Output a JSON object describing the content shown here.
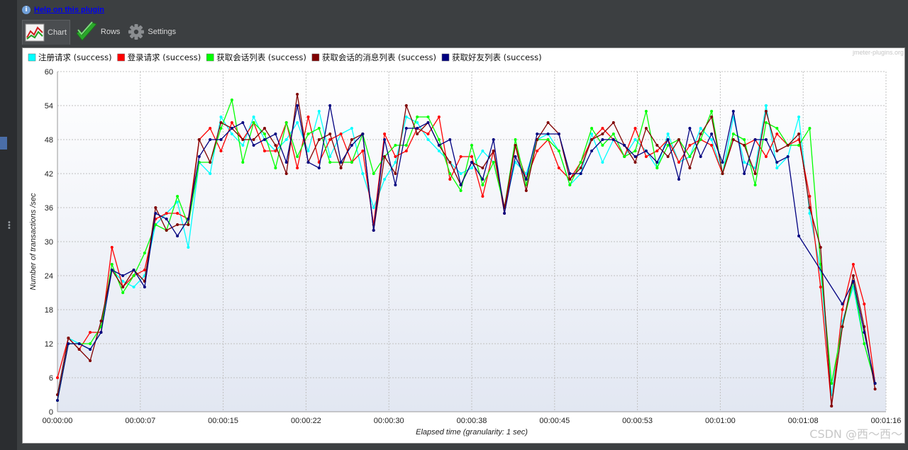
{
  "help": {
    "icon": "info-icon",
    "label": "Help on this plugin"
  },
  "tabs": [
    {
      "label": "Chart",
      "icon": "chart-icon",
      "active": true
    },
    {
      "label": "Rows",
      "icon": "checkmark-icon",
      "active": false
    },
    {
      "label": "Settings",
      "icon": "gear-icon",
      "active": false
    }
  ],
  "watermark": "jmeter-plugins.org",
  "csdn_watermark": "CSDN @西～西～",
  "chart_data": {
    "type": "line",
    "title": "",
    "xlabel": "Elapsed time (granularity: 1 sec)",
    "ylabel": "Number of transactions /sec",
    "ylim": [
      0,
      60
    ],
    "yticks": [
      "0",
      "6",
      "12",
      "18",
      "24",
      "30",
      "36",
      "42",
      "48",
      "54",
      "60"
    ],
    "xlim": [
      0,
      76
    ],
    "xticks": [
      {
        "v": 0,
        "label": "00:00:00"
      },
      {
        "v": 7.6,
        "label": "00:00:07"
      },
      {
        "v": 15.2,
        "label": "00:00:15"
      },
      {
        "v": 22.8,
        "label": "00:00:22"
      },
      {
        "v": 30.4,
        "label": "00:00:30"
      },
      {
        "v": 38,
        "label": "00:00:38"
      },
      {
        "v": 45.6,
        "label": "00:00:45"
      },
      {
        "v": 53.2,
        "label": "00:00:53"
      },
      {
        "v": 60.8,
        "label": "00:01:00"
      },
      {
        "v": 68.4,
        "label": "00:01:08"
      },
      {
        "v": 76,
        "label": "00:01:16"
      }
    ],
    "grid": true,
    "legend_position": "top",
    "series": [
      {
        "name": "注册请求 (success)",
        "color": "#00ffff",
        "x": [
          0,
          1,
          2,
          3,
          4,
          5,
          6,
          7,
          8,
          9,
          10,
          11,
          12,
          13,
          14,
          15,
          16,
          17,
          18,
          19,
          20,
          21,
          22,
          23,
          24,
          25,
          26,
          27,
          28,
          29,
          30,
          31,
          32,
          33,
          34,
          35,
          36,
          37,
          38,
          39,
          40,
          41,
          42,
          43,
          44,
          45,
          46,
          47,
          48,
          49,
          50,
          51,
          52,
          53,
          54,
          55,
          56,
          57,
          58,
          59,
          60,
          61,
          62,
          63,
          64,
          65,
          66,
          67,
          68,
          69,
          70,
          71,
          72,
          73,
          74,
          75,
          76
        ],
        "values": [
          3,
          13,
          12,
          11,
          14,
          25,
          23,
          22,
          24,
          33,
          35,
          37,
          29,
          44,
          42,
          52,
          49,
          47,
          52,
          48,
          46,
          48,
          51,
          46,
          53,
          45,
          49,
          50,
          42,
          36,
          41,
          44,
          52,
          51,
          48,
          46,
          44,
          42,
          43,
          46,
          44,
          36,
          44,
          42,
          48,
          49,
          46,
          40,
          42,
          49,
          44,
          48,
          45,
          48,
          46,
          43,
          49,
          44,
          45,
          50,
          48,
          42,
          52,
          44,
          43,
          54,
          43,
          45,
          52,
          35,
          25,
          3,
          16,
          22,
          12,
          5,
          null
        ]
      },
      {
        "name": "登录请求 (success)",
        "color": "#ff0000",
        "x": [
          0,
          1,
          2,
          3,
          4,
          5,
          6,
          7,
          8,
          9,
          10,
          11,
          12,
          13,
          14,
          15,
          16,
          17,
          18,
          19,
          20,
          21,
          22,
          23,
          24,
          25,
          26,
          27,
          28,
          29,
          30,
          31,
          32,
          33,
          34,
          35,
          36,
          37,
          38,
          39,
          40,
          41,
          42,
          43,
          44,
          45,
          46,
          47,
          48,
          49,
          50,
          51,
          52,
          53,
          54,
          55,
          56,
          57,
          58,
          59,
          60,
          61,
          62,
          63,
          64,
          65,
          66,
          67,
          68,
          69,
          70,
          71,
          72,
          73,
          74,
          75,
          76
        ],
        "values": [
          6,
          13,
          11,
          14,
          14,
          29,
          22,
          24,
          25,
          34,
          35,
          35,
          34,
          48,
          50,
          46,
          51,
          48,
          51,
          46,
          46,
          51,
          43,
          52,
          44,
          48,
          49,
          44,
          46,
          33,
          49,
          45,
          46,
          50,
          49,
          52,
          41,
          45,
          45,
          38,
          46,
          35,
          47,
          41,
          46,
          48,
          43,
          41,
          44,
          48,
          50,
          48,
          45,
          50,
          45,
          46,
          48,
          44,
          47,
          48,
          47,
          42,
          48,
          47,
          48,
          45,
          49,
          47,
          48,
          38,
          22,
          1,
          18,
          26,
          19,
          5,
          null
        ]
      },
      {
        "name": "获取会话列表 (success)",
        "color": "#00ff00",
        "x": [
          0,
          1,
          2,
          3,
          4,
          5,
          6,
          7,
          8,
          9,
          10,
          11,
          12,
          13,
          14,
          15,
          16,
          17,
          18,
          19,
          20,
          21,
          22,
          23,
          24,
          25,
          26,
          27,
          28,
          29,
          30,
          31,
          32,
          33,
          34,
          35,
          36,
          37,
          38,
          39,
          40,
          41,
          42,
          43,
          44,
          45,
          46,
          47,
          48,
          49,
          50,
          51,
          52,
          53,
          54,
          55,
          56,
          57,
          58,
          59,
          60,
          61,
          62,
          63,
          64,
          65,
          66,
          67,
          68,
          69,
          70,
          71,
          72,
          73,
          74,
          75,
          76
        ],
        "values": [
          2,
          12,
          12,
          12,
          15,
          26,
          21,
          24,
          28,
          33,
          32,
          38,
          33,
          44,
          44,
          50,
          55,
          44,
          51,
          49,
          43,
          51,
          45,
          49,
          50,
          44,
          44,
          44,
          49,
          42,
          45,
          47,
          47,
          52,
          52,
          48,
          42,
          39,
          47,
          40,
          44,
          36,
          48,
          40,
          48,
          48,
          46,
          40,
          44,
          50,
          47,
          49,
          45,
          46,
          53,
          43,
          47,
          48,
          45,
          48,
          53,
          42,
          49,
          48,
          40,
          51,
          50,
          47,
          47,
          50,
          26,
          5,
          15,
          23,
          12,
          5,
          null
        ]
      },
      {
        "name": "获取会话的消息列表 (success)",
        "color": "#800000",
        "x": [
          0,
          1,
          2,
          3,
          4,
          5,
          6,
          7,
          8,
          9,
          10,
          11,
          12,
          13,
          14,
          15,
          16,
          17,
          18,
          19,
          20,
          21,
          22,
          23,
          24,
          25,
          26,
          27,
          28,
          29,
          30,
          31,
          32,
          33,
          34,
          35,
          36,
          37,
          38,
          39,
          40,
          41,
          42,
          43,
          44,
          45,
          46,
          47,
          48,
          49,
          50,
          51,
          52,
          53,
          54,
          55,
          56,
          57,
          58,
          59,
          60,
          61,
          62,
          63,
          64,
          65,
          66,
          67,
          68,
          69,
          70,
          71,
          72,
          73,
          74,
          75,
          76
        ],
        "values": [
          3,
          13,
          11,
          9,
          16,
          25,
          22,
          25,
          23,
          36,
          32,
          33,
          33,
          48,
          44,
          51,
          50,
          48,
          48,
          50,
          47,
          42,
          56,
          44,
          48,
          49,
          43,
          48,
          49,
          32,
          45,
          42,
          54,
          49,
          51,
          47,
          44,
          40,
          44,
          43,
          46,
          36,
          47,
          39,
          48,
          51,
          49,
          41,
          43,
          48,
          49,
          51,
          47,
          44,
          50,
          47,
          45,
          48,
          43,
          49,
          52,
          42,
          48,
          47,
          42,
          53,
          46,
          47,
          49,
          36,
          29,
          1,
          15,
          24,
          15,
          4,
          null
        ]
      },
      {
        "name": "获取好友列表 (success)",
        "color": "#000080",
        "x": [
          0,
          1,
          2,
          3,
          4,
          5,
          6,
          7,
          8,
          9,
          10,
          11,
          12,
          13,
          14,
          15,
          16,
          17,
          18,
          19,
          20,
          21,
          22,
          23,
          24,
          25,
          26,
          27,
          28,
          29,
          30,
          31,
          32,
          33,
          34,
          35,
          36,
          37,
          38,
          39,
          40,
          41,
          42,
          43,
          44,
          45,
          46,
          47,
          48,
          49,
          50,
          51,
          52,
          53,
          54,
          55,
          56,
          57,
          58,
          59,
          60,
          61,
          62,
          63,
          64,
          65,
          66,
          67,
          68,
          69,
          70,
          71,
          72,
          73,
          74,
          75
        ],
        "values": [
          2,
          12,
          12,
          11,
          14,
          25,
          24,
          25,
          22,
          35,
          34,
          31,
          34,
          45,
          48,
          48,
          50,
          51,
          47,
          48,
          49,
          44,
          54,
          44,
          43,
          54,
          44,
          47,
          49,
          32,
          48,
          40,
          50,
          50,
          51,
          47,
          48,
          40,
          44,
          41,
          48,
          35,
          45,
          41,
          49,
          49,
          49,
          42,
          42,
          46,
          48,
          48,
          47,
          45,
          46,
          44,
          48,
          41,
          50,
          45,
          49,
          44,
          53,
          42,
          48,
          48,
          44,
          45,
          31,
          null,
          null,
          null,
          19,
          23,
          14,
          5
        ]
      }
    ]
  }
}
